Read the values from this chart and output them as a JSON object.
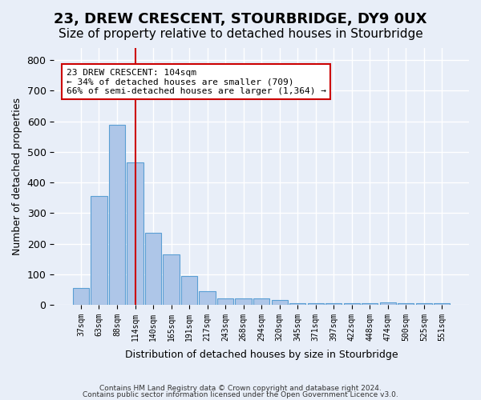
{
  "title": "23, DREW CRESCENT, STOURBRIDGE, DY9 0UX",
  "subtitle": "Size of property relative to detached houses in Stourbridge",
  "xlabel": "Distribution of detached houses by size in Stourbridge",
  "ylabel": "Number of detached properties",
  "footer_line1": "Contains HM Land Registry data © Crown copyright and database right 2024.",
  "footer_line2": "Contains public sector information licensed under the Open Government Licence v3.0.",
  "bar_labels": [
    "37sqm",
    "63sqm",
    "88sqm",
    "114sqm",
    "140sqm",
    "165sqm",
    "191sqm",
    "217sqm",
    "243sqm",
    "268sqm",
    "294sqm",
    "320sqm",
    "345sqm",
    "371sqm",
    "397sqm",
    "422sqm",
    "448sqm",
    "474sqm",
    "500sqm",
    "525sqm",
    "551sqm"
  ],
  "bar_values": [
    55,
    355,
    590,
    465,
    235,
    165,
    95,
    45,
    20,
    20,
    20,
    15,
    5,
    5,
    5,
    5,
    5,
    8,
    5,
    5,
    5
  ],
  "bar_color": "#aec6e8",
  "bar_edge_color": "#5a9fd4",
  "highlight_bar_index": 3,
  "highlight_line_color": "#cc0000",
  "ylim": [
    0,
    840
  ],
  "yticks": [
    0,
    100,
    200,
    300,
    400,
    500,
    600,
    700,
    800
  ],
  "annotation_title": "23 DREW CRESCENT: 104sqm",
  "annotation_line1": "← 34% of detached houses are smaller (709)",
  "annotation_line2": "66% of semi-detached houses are larger (1,364) →",
  "annotation_box_color": "#ffffff",
  "annotation_box_edge_color": "#cc0000",
  "background_color": "#e8eef8",
  "grid_color": "#ffffff",
  "title_fontsize": 13,
  "subtitle_fontsize": 11
}
